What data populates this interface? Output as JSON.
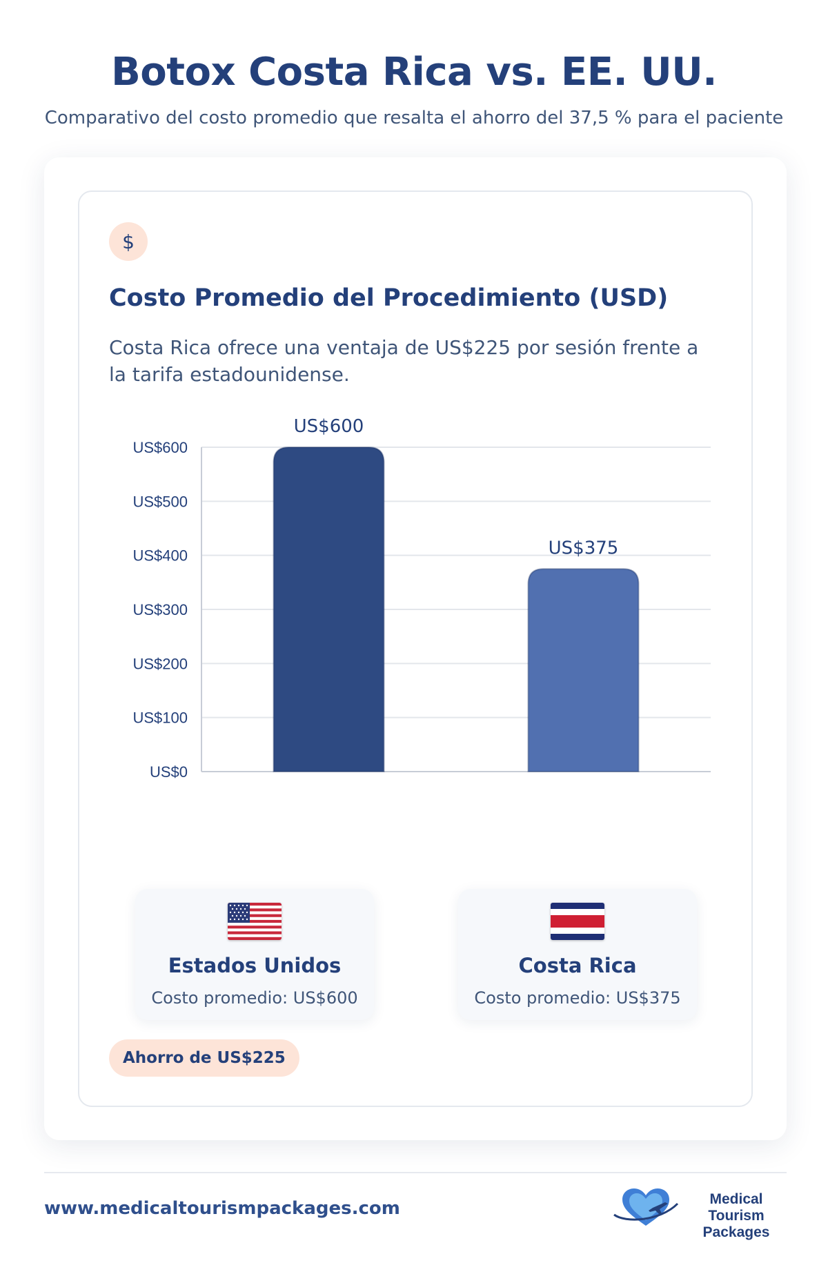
{
  "header": {
    "title": "Botox Costa Rica vs. EE. UU.",
    "subtitle": "Comparativo del costo promedio que resalta el ahorro del 37,5 % para el paciente"
  },
  "section": {
    "icon": "dollar-icon",
    "icon_glyph": "$",
    "title": "Costo Promedio del Procedimiento (USD)",
    "description": "Costa Rica ofrece una ventaja de US$225 por sesión frente a la tarifa estadounidense."
  },
  "chart_data": {
    "type": "bar",
    "title": "",
    "xlabel": "",
    "ylabel": "",
    "categories": [
      "Estados Unidos",
      "Costa Rica"
    ],
    "values": [
      600,
      375
    ],
    "value_labels": [
      "US$600",
      "US$375"
    ],
    "colors": [
      "#2e4a82",
      "#5170b0"
    ],
    "ylim": [
      0,
      600
    ],
    "yticks": [
      0,
      100,
      200,
      300,
      400,
      500,
      600
    ],
    "ytick_labels": [
      "US$0",
      "US$100",
      "US$200",
      "US$300",
      "US$400",
      "US$500",
      "US$600"
    ],
    "grid": true,
    "legend": "none"
  },
  "countries": [
    {
      "name": "Estados Unidos",
      "flag": "us-flag-icon",
      "cost_label": "Costo promedio: US$600"
    },
    {
      "name": "Costa Rica",
      "flag": "costa-rica-flag-icon",
      "cost_label": "Costo promedio: US$375"
    }
  ],
  "savings_badge": "Ahorro de US$225",
  "footer": {
    "url": "www.medicaltourismpackages.com",
    "logo_line1": "Medical Tourism",
    "logo_line2": "Packages",
    "logo_icon": "heart-plane-icon"
  }
}
